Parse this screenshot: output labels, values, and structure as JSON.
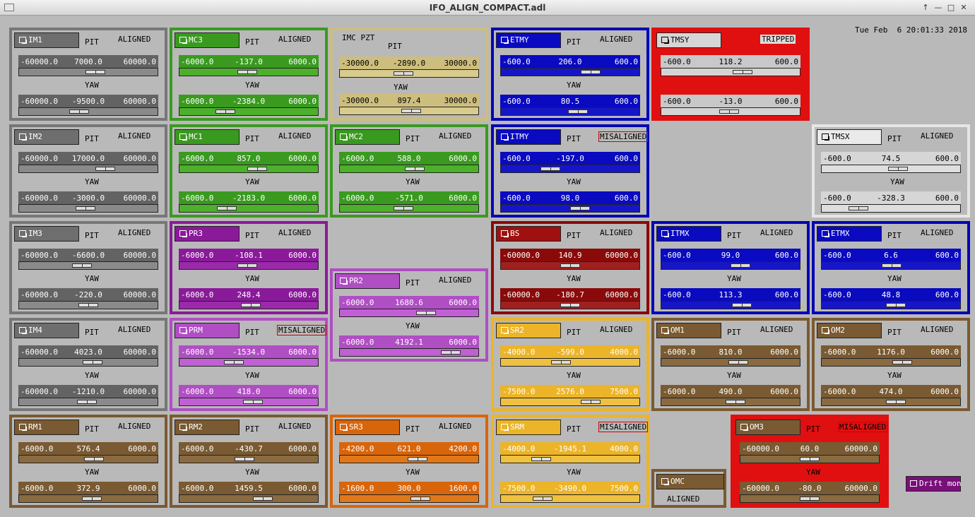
{
  "window": {
    "title": "IFO_ALIGN_COMPACT.adl"
  },
  "datetime": "Tue Feb  6 20:01:33 2018",
  "drift_label": "Drift mon",
  "labels": {
    "pit": "PIT",
    "yaw": "YAW"
  },
  "colors": {
    "gray": {
      "border": "#777777",
      "bg": "#b9b9b9",
      "btn": "#6e6e6e",
      "bar": "#636363",
      "track": "#8a8a8a",
      "text": "#ffffff"
    },
    "green": {
      "border": "#3a9a20",
      "bg": "#b9b9b9",
      "btn": "#3a9a20",
      "bar": "#3a9a20",
      "track": "#4cb02a",
      "text": "#ffffff"
    },
    "khaki": {
      "border": "#cdbe7e",
      "bg": "#b9b9b9",
      "btn": "#cdbe7e",
      "bar": "#cdbe7e",
      "track": "#d8cb8c",
      "text": "#000000"
    },
    "blue": {
      "border": "#0505b4",
      "bg": "#b9b9b9",
      "btn": "#0a0ac0",
      "bar": "#0a0ac0",
      "track": "#1616c8",
      "text": "#ffffff"
    },
    "red": {
      "border": "#e01010",
      "bg": "#e01010",
      "btn": "#d6d6d6",
      "bar": "#c8c8c8",
      "track": "#d4d4d4",
      "text": "#000000"
    },
    "white": {
      "border": "#e6e6e6",
      "bg": "#b9b9b9",
      "btn": "#eaeaea",
      "bar": "#d6d6d6",
      "track": "#dedede",
      "text": "#000000"
    },
    "purple": {
      "border": "#8a1a9a",
      "bg": "#b9b9b9",
      "btn": "#8a1a9a",
      "bar": "#8a1a9a",
      "track": "#9a2aaa",
      "text": "#ffffff"
    },
    "violet": {
      "border": "#b04ec4",
      "bg": "#b9b9b9",
      "btn": "#b04ec4",
      "bar": "#b04ec4",
      "track": "#c060d4",
      "text": "#ffffff"
    },
    "maroon": {
      "border": "#8a0a0a",
      "bg": "#b9b9b9",
      "btn": "#a01010",
      "bar": "#8a0a0a",
      "track": "#a02020",
      "text": "#ffffff"
    },
    "brown": {
      "border": "#7a5a32",
      "bg": "#b9b9b9",
      "btn": "#7a5a32",
      "bar": "#7a5a32",
      "track": "#8a6a40",
      "text": "#ffffff"
    },
    "yellow": {
      "border": "#ecb428",
      "bg": "#b9b9b9",
      "btn": "#ecb428",
      "bar": "#ecb428",
      "track": "#f0c040",
      "text": "#ffffff"
    },
    "orange": {
      "border": "#d9650a",
      "bg": "#b9b9b9",
      "btn": "#d9650a",
      "bar": "#d9650a",
      "track": "#e0781a",
      "text": "#ffffff"
    },
    "redpanel": {
      "border": "#e01010",
      "bg": "#e01010",
      "btn": "#7a5a32",
      "bar": "#7a5a32",
      "track": "#8a6a40",
      "text": "#ffffff"
    }
  },
  "panels": [
    {
      "id": "im1",
      "name": "IM1",
      "theme": "gray",
      "status": "ALIGNED",
      "pit": {
        "min": "-60000.0",
        "value": "7000.0",
        "max": "60000.0",
        "pos": 0.5583
      },
      "yaw": {
        "min": "-60000.0",
        "value": "-9500.0",
        "max": "60000.0",
        "pos": 0.4208
      }
    },
    {
      "id": "mc3",
      "name": "MC3",
      "theme": "green",
      "status": "ALIGNED",
      "pit": {
        "min": "-6000.0",
        "value": "-137.0",
        "max": "6000.0",
        "pos": 0.4886
      },
      "yaw": {
        "min": "-6000.0",
        "value": "-2384.0",
        "max": "6000.0",
        "pos": 0.3013
      }
    },
    {
      "id": "imcpzt",
      "name": "IMC PZT",
      "theme": "khaki",
      "status": "",
      "pit": {
        "min": "-30000.0",
        "value": "-2890.0",
        "max": "30000.0",
        "pos": 0.4518
      },
      "yaw": {
        "min": "-30000.0",
        "value": "897.4",
        "max": "30000.0",
        "pos": 0.515
      }
    },
    {
      "id": "etmy",
      "name": "ETMY",
      "theme": "blue",
      "status": "ALIGNED",
      "pit": {
        "min": "-600.0",
        "value": "206.0",
        "max": "600.0",
        "pos": 0.6717
      },
      "yaw": {
        "min": "-600.0",
        "value": "80.5",
        "max": "600.0",
        "pos": 0.5671
      }
    },
    {
      "id": "tmsy",
      "name": "TMSY",
      "theme": "red",
      "status": "TRIPPED",
      "pit": {
        "min": "-600.0",
        "value": "118.2",
        "max": "600.0",
        "pos": 0.5985
      },
      "yaw": {
        "min": "-600.0",
        "value": "-13.0",
        "max": "600.0",
        "pos": 0.4892
      }
    },
    {
      "id": "im2",
      "name": "IM2",
      "theme": "gray",
      "status": "ALIGNED",
      "pit": {
        "min": "-60000.0",
        "value": "17000.0",
        "max": "60000.0",
        "pos": 0.6417
      },
      "yaw": {
        "min": "-60000.0",
        "value": "-3000.0",
        "max": "60000.0",
        "pos": 0.475
      }
    },
    {
      "id": "mc1",
      "name": "MC1",
      "theme": "green",
      "status": "ALIGNED",
      "pit": {
        "min": "-6000.0",
        "value": "857.0",
        "max": "6000.0",
        "pos": 0.5714
      },
      "yaw": {
        "min": "-6000.0",
        "value": "-2183.0",
        "max": "6000.0",
        "pos": 0.3181
      }
    },
    {
      "id": "mc2",
      "name": "MC2",
      "theme": "green",
      "status": "ALIGNED",
      "pit": {
        "min": "-6000.0",
        "value": "588.0",
        "max": "6000.0",
        "pos": 0.549
      },
      "yaw": {
        "min": "-6000.0",
        "value": "-571.0",
        "max": "6000.0",
        "pos": 0.4524
      }
    },
    {
      "id": "itmy",
      "name": "ITMY",
      "theme": "blue",
      "status": "MISALIGNED",
      "pit": {
        "min": "-600.0",
        "value": "-197.0",
        "max": "600.0",
        "pos": 0.3358
      },
      "yaw": {
        "min": "-600.0",
        "value": "98.0",
        "max": "600.0",
        "pos": 0.5817
      }
    },
    {
      "id": "tmsx",
      "name": "TMSX",
      "theme": "white",
      "status": "ALIGNED",
      "pit": {
        "min": "-600.0",
        "value": "74.5",
        "max": "600.0",
        "pos": 0.5621
      },
      "yaw": {
        "min": "-600.0",
        "value": "-328.3",
        "max": "600.0",
        "pos": 0.2264
      }
    },
    {
      "id": "im3",
      "name": "IM3",
      "theme": "gray",
      "status": "ALIGNED",
      "pit": {
        "min": "-60000.0",
        "value": "-6600.0",
        "max": "60000.0",
        "pos": 0.445
      },
      "yaw": {
        "min": "-60000.0",
        "value": "-220.0",
        "max": "60000.0",
        "pos": 0.4982
      }
    },
    {
      "id": "pr3",
      "name": "PR3",
      "theme": "purple",
      "status": "ALIGNED",
      "pit": {
        "min": "-6000.0",
        "value": "-108.1",
        "max": "6000.0",
        "pos": 0.491
      },
      "yaw": {
        "min": "-6000.0",
        "value": "248.4",
        "max": "6000.0",
        "pos": 0.5207
      }
    },
    {
      "id": "pr2",
      "name": "PR2",
      "theme": "violet",
      "status": "ALIGNED",
      "pit": {
        "min": "-6000.0",
        "value": "1680.6",
        "max": "6000.0",
        "pos": 0.6401
      },
      "yaw": {
        "min": "-6000.0",
        "value": "4192.1",
        "max": "6000.0",
        "pos": 0.8493
      }
    },
    {
      "id": "bs",
      "name": "BS",
      "theme": "maroon",
      "status": "ALIGNED",
      "pit": {
        "min": "-60000.0",
        "value": "140.9",
        "max": "60000.0",
        "pos": 0.5012
      },
      "yaw": {
        "min": "-60000.0",
        "value": "-180.7",
        "max": "60000.0",
        "pos": 0.4985
      }
    },
    {
      "id": "itmx",
      "name": "ITMX",
      "theme": "blue",
      "status": "ALIGNED",
      "pit": {
        "min": "-600.0",
        "value": "99.0",
        "max": "600.0",
        "pos": 0.5825
      },
      "yaw": {
        "min": "-600.0",
        "value": "113.3",
        "max": "600.0",
        "pos": 0.5944
      }
    },
    {
      "id": "etmx",
      "name": "ETMX",
      "theme": "blue",
      "status": "ALIGNED",
      "pit": {
        "min": "-600.0",
        "value": "6.6",
        "max": "600.0",
        "pos": 0.5055
      },
      "yaw": {
        "min": "-600.0",
        "value": "48.8",
        "max": "600.0",
        "pos": 0.5407
      }
    },
    {
      "id": "im4",
      "name": "IM4",
      "theme": "gray",
      "status": "ALIGNED",
      "pit": {
        "min": "-60000.0",
        "value": "4023.0",
        "max": "60000.0",
        "pos": 0.5335
      },
      "yaw": {
        "min": "-60000.0",
        "value": "-1210.0",
        "max": "60000.0",
        "pos": 0.4899
      }
    },
    {
      "id": "prm",
      "name": "PRM",
      "theme": "violet",
      "status": "MISALIGNED",
      "pit": {
        "min": "-6000.0",
        "value": "-1534.0",
        "max": "6000.0",
        "pos": 0.3722
      },
      "yaw": {
        "min": "-6000.0",
        "value": "418.0",
        "max": "6000.0",
        "pos": 0.5348
      }
    },
    {
      "id": "sr2",
      "name": "SR2",
      "theme": "yellow",
      "status": "ALIGNED",
      "pit": {
        "min": "-4000.0",
        "value": "-599.0",
        "max": "4000.0",
        "pos": 0.4251
      },
      "yaw": {
        "min": "-7500.0",
        "value": "2576.0",
        "max": "7500.0",
        "pos": 0.6717
      }
    },
    {
      "id": "om1",
      "name": "OM1",
      "theme": "brown",
      "status": "ALIGNED",
      "pit": {
        "min": "-6000.0",
        "value": "810.0",
        "max": "6000.0",
        "pos": 0.5675
      },
      "yaw": {
        "min": "-6000.0",
        "value": "490.0",
        "max": "6000.0",
        "pos": 0.5408
      }
    },
    {
      "id": "om2",
      "name": "OM2",
      "theme": "brown",
      "status": "ALIGNED",
      "pit": {
        "min": "-6000.0",
        "value": "1176.0",
        "max": "6000.0",
        "pos": 0.598
      },
      "yaw": {
        "min": "-6000.0",
        "value": "474.0",
        "max": "6000.0",
        "pos": 0.5395
      }
    },
    {
      "id": "rm1",
      "name": "RM1",
      "theme": "brown",
      "status": "ALIGNED",
      "pit": {
        "min": "-6000.0",
        "value": "576.4",
        "max": "6000.0",
        "pos": 0.548
      },
      "yaw": {
        "min": "-6000.0",
        "value": "372.9",
        "max": "6000.0",
        "pos": 0.5311
      }
    },
    {
      "id": "rm2",
      "name": "RM2",
      "theme": "brown",
      "status": "ALIGNED",
      "pit": {
        "min": "-6000.0",
        "value": "-430.7",
        "max": "6000.0",
        "pos": 0.4641
      },
      "yaw": {
        "min": "-6000.0",
        "value": "1459.5",
        "max": "6000.0",
        "pos": 0.6216
      }
    },
    {
      "id": "sr3",
      "name": "SR3",
      "theme": "orange",
      "status": "ALIGNED",
      "pit": {
        "min": "-4200.0",
        "value": "621.0",
        "max": "4200.0",
        "pos": 0.5739
      },
      "yaw": {
        "min": "-1600.0",
        "value": "300.0",
        "max": "1600.0",
        "pos": 0.5938
      }
    },
    {
      "id": "srm",
      "name": "SRM",
      "theme": "yellow",
      "status": "MISALIGNED",
      "pit": {
        "min": "-4000.0",
        "value": "-1945.1",
        "max": "4000.0",
        "pos": 0.2569
      },
      "yaw": {
        "min": "-7500.0",
        "value": "-3490.0",
        "max": "7500.0",
        "pos": 0.2673
      }
    },
    {
      "id": "omc",
      "name": "OMC",
      "theme": "brown",
      "status": "ALIGNED"
    },
    {
      "id": "om3",
      "name": "OM3",
      "theme": "redpanel",
      "status": "MISALIGNED",
      "pit": {
        "min": "-60000.0",
        "value": "60.0",
        "max": "60000.0",
        "pos": 0.5005
      },
      "yaw": {
        "min": "-60000.0",
        "value": "-80.0",
        "max": "60000.0",
        "pos": 0.4993
      }
    }
  ]
}
